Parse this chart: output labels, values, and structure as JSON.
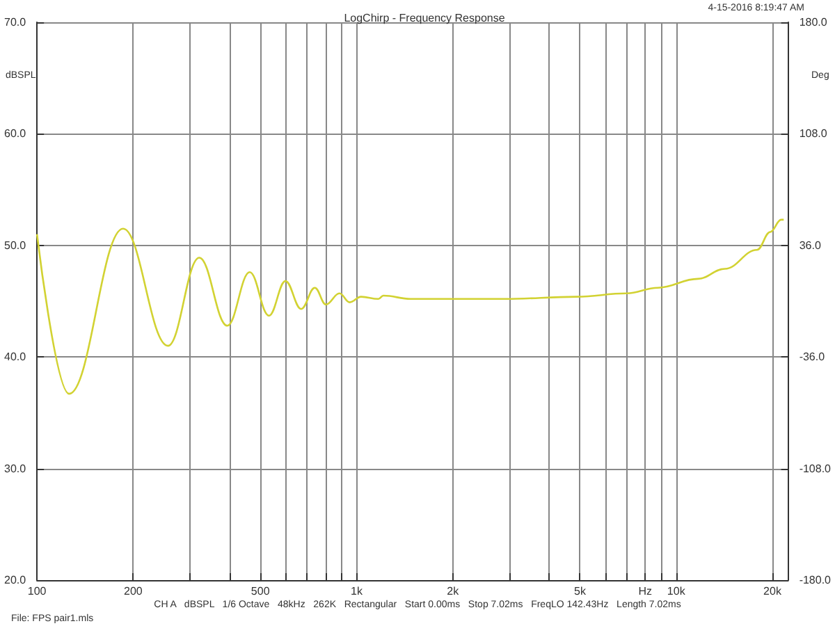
{
  "chart_data": {
    "type": "line",
    "title": "LogChirp - Frequency Response",
    "ylabel": "dBSPL",
    "y2label": "Deg",
    "annotations": [
      "4-15-2016 8:19:47 AM",
      "CH A   dBSPL   1/6 Octave   48kHz   262K   Rectangular   Start 0.00ms   Stop 7.02ms   FreqLO 142.43Hz   Length 7.02ms",
      "File: FPS pair1.mls"
    ],
    "x": [
      100,
      126,
      186,
      257,
      322,
      394,
      463,
      532,
      599,
      671,
      740,
      802,
      884,
      952,
      1033,
      1170,
      1213,
      1476,
      1972,
      2910,
      4890,
      6990,
      8760,
      11700,
      14200,
      17900,
      19700,
      21300,
      21700
    ],
    "series": [
      {
        "color": "#d2d232",
        "values": [
          51.0,
          36.7,
          51.5,
          41.0,
          48.9,
          42.8,
          47.6,
          43.7,
          46.8,
          44.3,
          46.2,
          44.7,
          45.7,
          44.9,
          45.4,
          45.2,
          45.5,
          45.2,
          45.2,
          45.2,
          45.4,
          45.7,
          46.2,
          47.0,
          47.9,
          49.6,
          51.2,
          52.3,
          52.3
        ]
      }
    ],
    "log": "x",
    "xlim": [
      100,
      22400
    ],
    "ylim": [
      20,
      70
    ],
    "y2lim": [
      -180,
      180
    ],
    "xticks": [
      100,
      200,
      {
        "value": 300,
        "label": null
      },
      {
        "value": 400,
        "label": null
      },
      500,
      {
        "value": 600,
        "label": null
      },
      {
        "value": 700,
        "label": null
      },
      {
        "value": 800,
        "label": null
      },
      {
        "value": 900,
        "label": null
      },
      {
        "value": 1000,
        "label": "1k"
      },
      {
        "value": 2000,
        "label": "2k"
      },
      {
        "value": 3000,
        "label": null
      },
      {
        "value": 4000,
        "label": null
      },
      {
        "value": 5000,
        "label": "5k"
      },
      {
        "value": 6000,
        "label": null
      },
      {
        "value": 7000,
        "label": null
      },
      {
        "value": 8000,
        "label": "Hz"
      },
      {
        "value": 9000,
        "label": null
      },
      {
        "value": 10000,
        "label": "10k"
      },
      {
        "value": 20000,
        "label": "20k"
      }
    ],
    "yticks": [
      {
        "value": 20,
        "label": "20.0"
      },
      {
        "value": 30,
        "label": "30.0"
      },
      {
        "value": 40,
        "label": "40.0"
      },
      {
        "value": 50,
        "label": "50.0"
      },
      {
        "value": 60,
        "label": "60.0"
      },
      {
        "value": 70,
        "label": "70.0"
      }
    ],
    "y2ticks": [
      {
        "value": -180,
        "label": "-180.0"
      },
      {
        "value": -108,
        "label": "-108.0"
      },
      {
        "value": -36,
        "label": "-36.0"
      },
      {
        "value": 36,
        "label": "36.0"
      },
      {
        "value": 108,
        "label": "108.0"
      },
      {
        "value": 180,
        "label": "180.0"
      }
    ],
    "grid": true,
    "marker": "none",
    "line_style": "solid"
  }
}
